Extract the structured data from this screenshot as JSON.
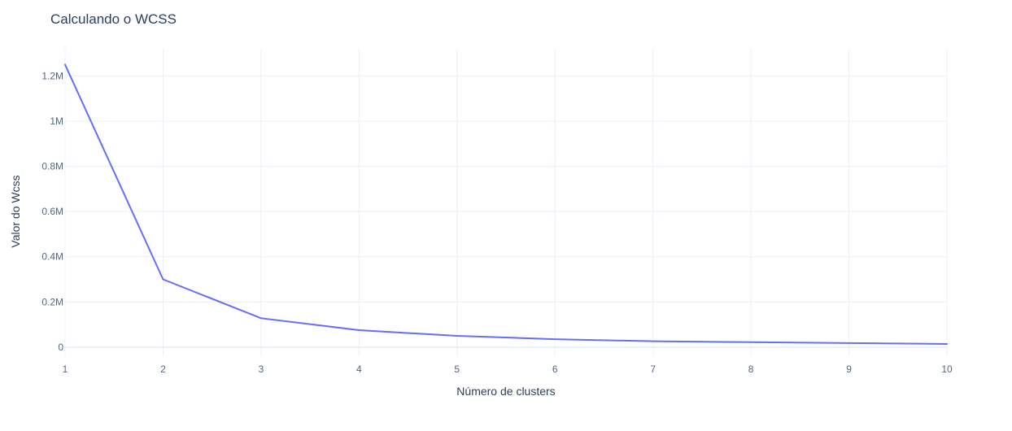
{
  "chart_data": {
    "type": "line",
    "title": "Calculando o WCSS",
    "xlabel": "Número de clusters",
    "ylabel": "Valor do Wcss",
    "x": [
      1,
      2,
      3,
      4,
      5,
      6,
      7,
      8,
      9,
      10
    ],
    "series": [
      {
        "values": [
          1250000,
          300000,
          128000,
          75000,
          50000,
          35000,
          26000,
          22000,
          18000,
          14000
        ]
      }
    ],
    "xlim": [
      1,
      10
    ],
    "ylim": [
      -40000.0,
      1320000.0
    ],
    "x_ticks": [
      1,
      2,
      3,
      4,
      5,
      6,
      7,
      8,
      9,
      10
    ],
    "y_ticks": [
      0,
      200000,
      400000,
      600000,
      800000,
      1000000,
      1200000
    ],
    "y_tick_labels": [
      "0",
      "0.2M",
      "0.4M",
      "0.6M",
      "0.8M",
      "1M",
      "1.2M"
    ],
    "grid": true,
    "legend": "none",
    "colors": {
      "line": "#636efa",
      "grid": "#ebf0f8",
      "text": "#2a3f5f",
      "tick_text": "#506784",
      "zeroline": "#EBF0F8"
    }
  }
}
